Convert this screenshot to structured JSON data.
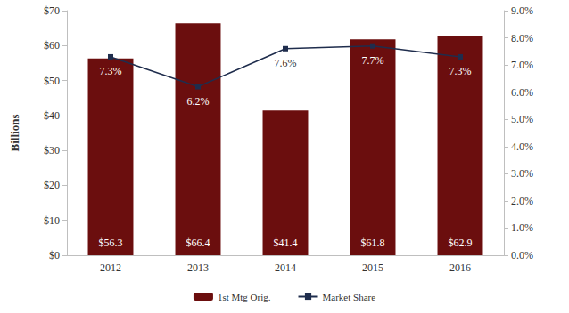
{
  "chart_data": {
    "type": "bar",
    "categories": [
      "2012",
      "2013",
      "2014",
      "2015",
      "2016"
    ],
    "ylabel": "Billions",
    "ylim": [
      0,
      70
    ],
    "yticks": [
      {
        "value": 0,
        "label": "$0"
      },
      {
        "value": 10,
        "label": "$10"
      },
      {
        "value": 20,
        "label": "$20"
      },
      {
        "value": 30,
        "label": "$30"
      },
      {
        "value": 40,
        "label": "$40"
      },
      {
        "value": 50,
        "label": "$50"
      },
      {
        "value": 60,
        "label": "$60"
      },
      {
        "value": 70,
        "label": "$70"
      }
    ],
    "y2lim": [
      0,
      9
    ],
    "y2ticks": [
      {
        "value": 0,
        "label": "0.0%"
      },
      {
        "value": 1,
        "label": "1.0%"
      },
      {
        "value": 2,
        "label": "2.0%"
      },
      {
        "value": 3,
        "label": "3.0%"
      },
      {
        "value": 4,
        "label": "4.0%"
      },
      {
        "value": 5,
        "label": "5.0%"
      },
      {
        "value": 6,
        "label": "6.0%"
      },
      {
        "value": 7,
        "label": "7.0%"
      },
      {
        "value": 8,
        "label": "8.0%"
      },
      {
        "value": 9,
        "label": "9.0%"
      }
    ],
    "grid": false,
    "legend": "bottom",
    "data_labels": true,
    "series": [
      {
        "name": "1st Mtg Orig.",
        "type": "bar",
        "color": "#6b0e0e",
        "values": [
          56.3,
          66.4,
          41.4,
          61.8,
          62.9
        ],
        "value_labels": [
          "$56.3",
          "$66.4",
          "$41.4",
          "$61.8",
          "$62.9"
        ]
      },
      {
        "name": "Market Share",
        "type": "line",
        "axis": "y2",
        "color": "#1f2d4d",
        "marker": "square",
        "values": [
          7.3,
          6.2,
          7.6,
          7.7,
          7.3
        ],
        "value_labels": [
          "7.3%",
          "6.2%",
          "7.6%",
          "7.7%",
          "7.3%"
        ]
      }
    ]
  }
}
